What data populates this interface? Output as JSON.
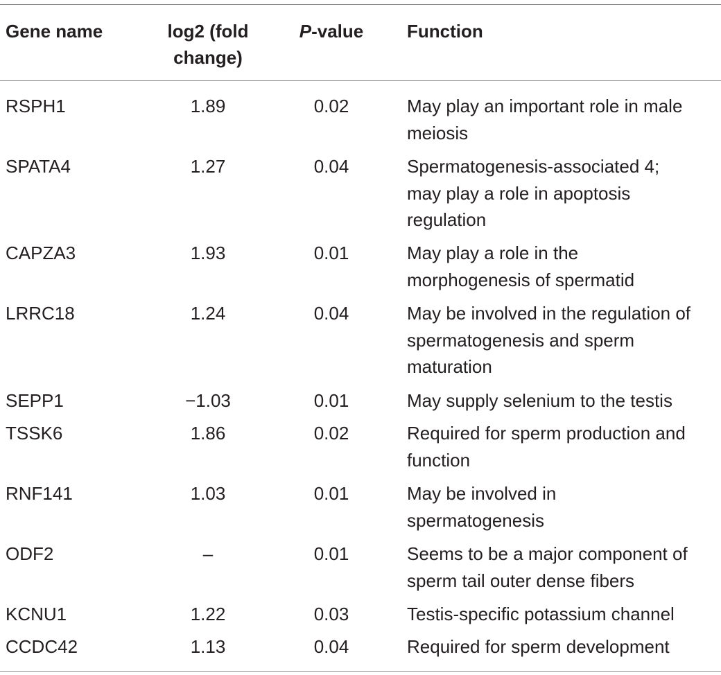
{
  "headers": {
    "gene": "Gene name",
    "fc_line1": "log2 (fold",
    "fc_line2": "change)",
    "p_italic": "P",
    "p_rest": "-value",
    "function": "Function"
  },
  "rows": [
    {
      "gene": "RSPH1",
      "fc": "1.89",
      "p": "0.02",
      "fn": [
        "May play an important role in male",
        "meiosis"
      ]
    },
    {
      "gene": "SPATA4",
      "fc": "1.27",
      "p": "0.04",
      "fn": [
        "Spermatogenesis-associated 4;",
        "may play a role in apoptosis",
        "regulation"
      ]
    },
    {
      "gene": "CAPZA3",
      "fc": "1.93",
      "p": "0.01",
      "fn": [
        "May play a role in the",
        "morphogenesis of spermatid"
      ]
    },
    {
      "gene": "LRRC18",
      "fc": "1.24",
      "p": "0.04",
      "fn": [
        "May be involved in the regulation of",
        "spermatogenesis and sperm",
        "maturation"
      ]
    },
    {
      "gene": "SEPP1",
      "fc": "−1.03",
      "p": "0.01",
      "fn": [
        "May supply selenium to the testis"
      ]
    },
    {
      "gene": "TSSK6",
      "fc": "1.86",
      "p": "0.02",
      "fn": [
        "Required for sperm production and",
        "function"
      ]
    },
    {
      "gene": "RNF141",
      "fc": "1.03",
      "p": "0.01",
      "fn": [
        "May be involved in",
        "spermatogenesis"
      ]
    },
    {
      "gene": "ODF2",
      "fc": "–",
      "p": "0.01",
      "fn": [
        "Seems to be a major component of",
        "sperm tail outer dense fibers"
      ]
    },
    {
      "gene": "KCNU1",
      "fc": "1.22",
      "p": "0.03",
      "fn": [
        "Testis-specific potassium channel"
      ]
    },
    {
      "gene": "CCDC42",
      "fc": "1.13",
      "p": "0.04",
      "fn": [
        "Required for sperm development"
      ]
    }
  ]
}
